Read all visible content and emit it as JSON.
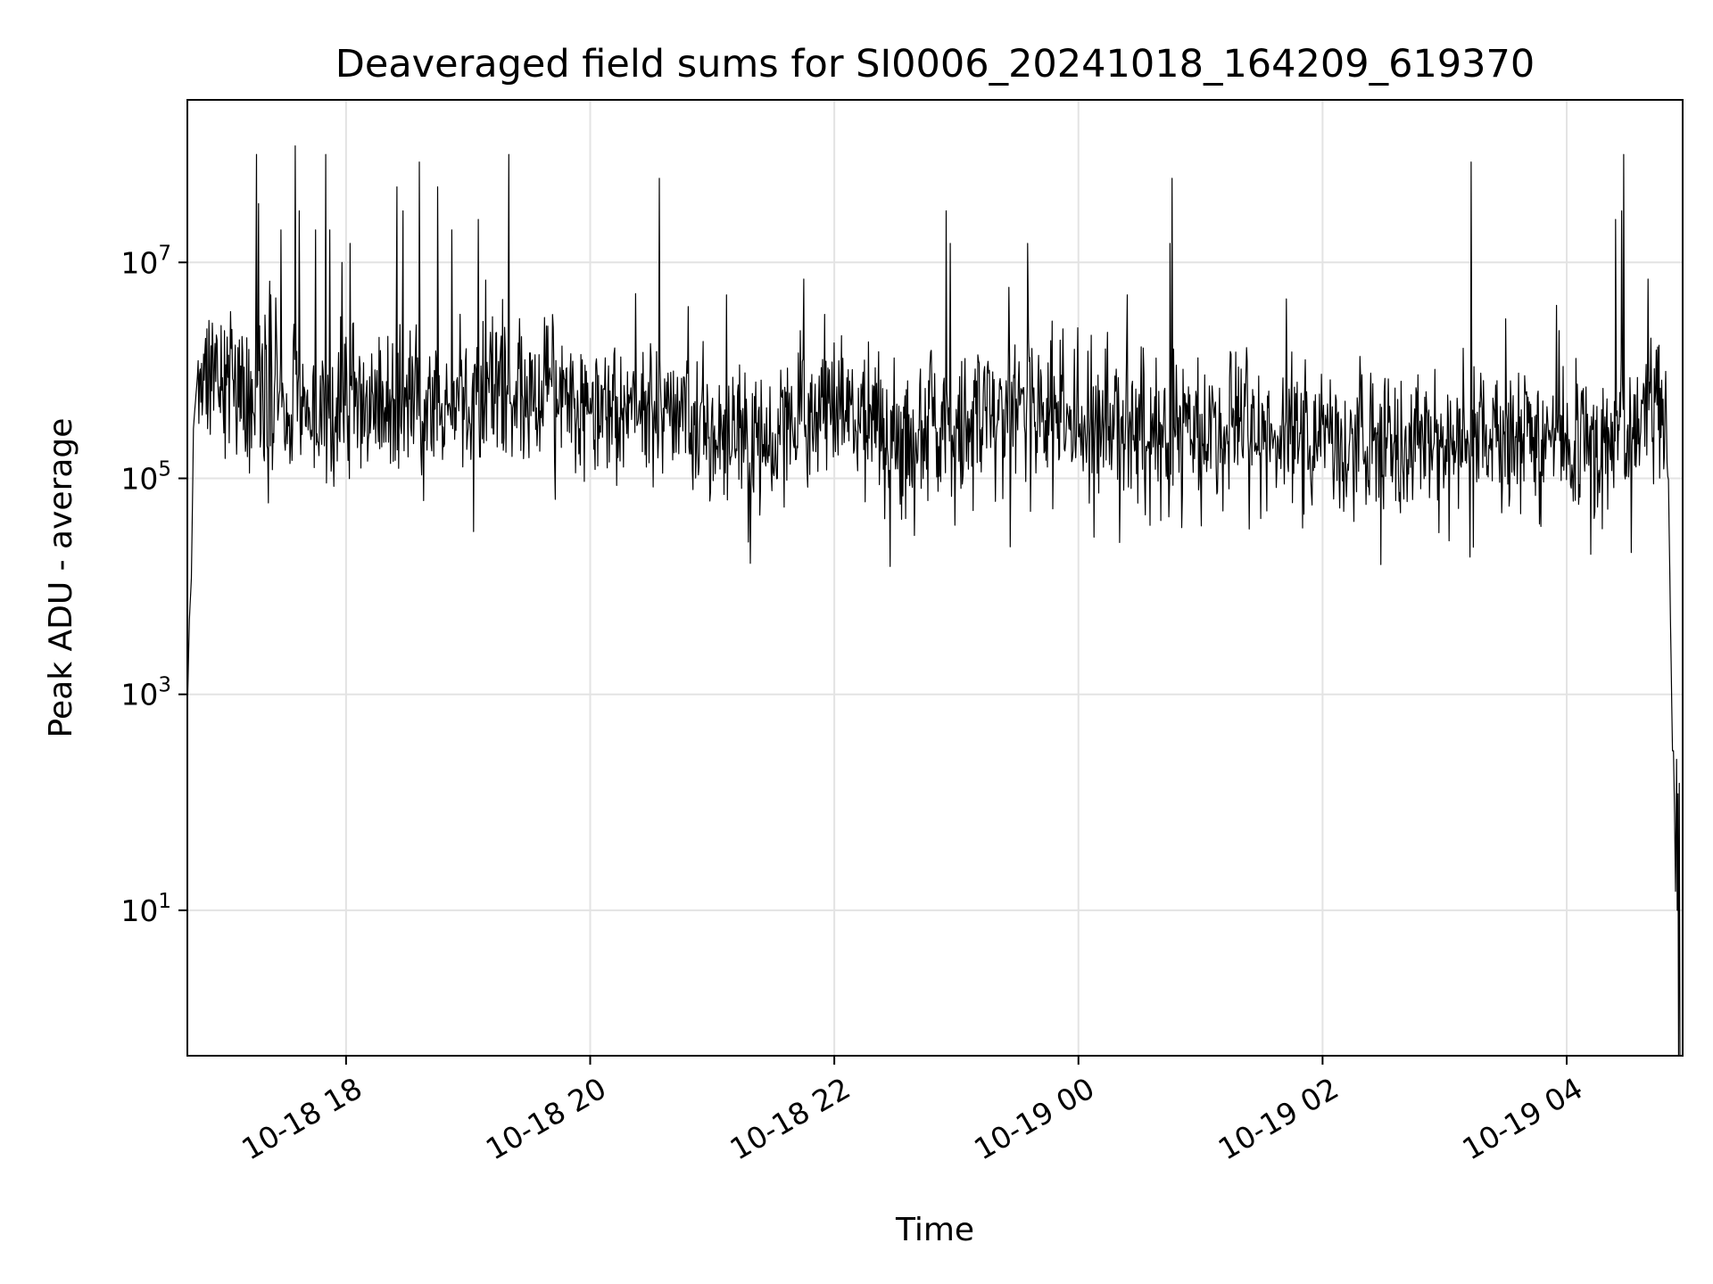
{
  "chart_data": {
    "type": "line",
    "title": "Deaveraged field sums for SI0006_20241018_164209_619370",
    "xlabel": "Time",
    "ylabel": "Peak ADU - average",
    "yscale": "log",
    "ylim": [
      0.45,
      320000000
    ],
    "xlim": [
      "2024-10-18 16:42",
      "2024-10-19 04:57"
    ],
    "grid": true,
    "x_ticks": [
      {
        "t": "2024-10-18 18:00",
        "label": "10-18 18"
      },
      {
        "t": "2024-10-18 20:00",
        "label": "10-18 20"
      },
      {
        "t": "2024-10-18 22:00",
        "label": "10-18 22"
      },
      {
        "t": "2024-10-19 00:00",
        "label": "10-19 00"
      },
      {
        "t": "2024-10-19 02:00",
        "label": "10-19 02"
      },
      {
        "t": "2024-10-19 04:00",
        "label": "10-19 04"
      }
    ],
    "y_ticks": [
      {
        "value": 10,
        "base": "10",
        "exp": "1"
      },
      {
        "value": 1000,
        "base": "10",
        "exp": "3"
      },
      {
        "value": 100000,
        "base": "10",
        "exp": "5"
      },
      {
        "value": 10000000,
        "base": "10",
        "exp": "7"
      }
    ],
    "series": [
      {
        "color": "#000000",
        "baseline": [
          {
            "t": "2024-10-18 16:42",
            "v": 700
          },
          {
            "t": "2024-10-18 16:43",
            "v": 5000
          },
          {
            "t": "2024-10-18 16:44",
            "v": 12000
          },
          {
            "t": "2024-10-18 16:45",
            "v": 300000
          },
          {
            "t": "2024-10-18 16:47",
            "v": 900000
          },
          {
            "t": "2024-10-18 16:55",
            "v": 1200000
          },
          {
            "t": "2024-10-18 17:10",
            "v": 600000
          },
          {
            "t": "2024-10-18 17:40",
            "v": 450000
          },
          {
            "t": "2024-10-18 18:30",
            "v": 450000
          },
          {
            "t": "2024-10-18 19:30",
            "v": 550000
          },
          {
            "t": "2024-10-18 20:30",
            "v": 450000
          },
          {
            "t": "2024-10-18 21:30",
            "v": 200000
          },
          {
            "t": "2024-10-18 22:00",
            "v": 500000
          },
          {
            "t": "2024-10-18 22:30",
            "v": 200000
          },
          {
            "t": "2024-10-18 23:30",
            "v": 450000
          },
          {
            "t": "2024-10-19 00:30",
            "v": 300000
          },
          {
            "t": "2024-10-19 01:30",
            "v": 300000
          },
          {
            "t": "2024-10-19 02:30",
            "v": 200000
          },
          {
            "t": "2024-10-19 03:30",
            "v": 250000
          },
          {
            "t": "2024-10-19 04:20",
            "v": 220000
          },
          {
            "t": "2024-10-19 04:40",
            "v": 500000
          },
          {
            "t": "2024-10-19 04:47",
            "v": 600000
          },
          {
            "t": "2024-10-19 04:50",
            "v": 100000
          },
          {
            "t": "2024-10-19 04:51",
            "v": 5000
          },
          {
            "t": "2024-10-19 04:52",
            "v": 300
          }
        ],
        "noise_amplitude_decades": 0.35,
        "spikes": [
          {
            "t": "2024-10-18 17:16",
            "v": 100000000
          },
          {
            "t": "2024-10-18 17:17",
            "v": 35000000
          },
          {
            "t": "2024-10-18 17:23",
            "v": 5000000
          },
          {
            "t": "2024-10-18 17:28",
            "v": 20000000
          },
          {
            "t": "2024-10-18 17:35",
            "v": 120000000
          },
          {
            "t": "2024-10-18 17:37",
            "v": 30000000
          },
          {
            "t": "2024-10-18 17:45",
            "v": 20000000
          },
          {
            "t": "2024-10-18 17:50",
            "v": 100000000
          },
          {
            "t": "2024-10-18 17:52",
            "v": 20000000
          },
          {
            "t": "2024-10-18 17:58",
            "v": 10000000
          },
          {
            "t": "2024-10-18 18:02",
            "v": 15000000
          },
          {
            "t": "2024-10-18 18:25",
            "v": 50000000
          },
          {
            "t": "2024-10-18 18:28",
            "v": 30000000
          },
          {
            "t": "2024-10-18 18:36",
            "v": 85000000
          },
          {
            "t": "2024-10-18 18:45",
            "v": 50000000
          },
          {
            "t": "2024-10-18 18:52",
            "v": 20000000
          },
          {
            "t": "2024-10-18 19:05",
            "v": 25000000
          },
          {
            "t": "2024-10-18 19:20",
            "v": 100000000
          },
          {
            "t": "2024-10-18 20:34",
            "v": 60000000
          },
          {
            "t": "2024-10-18 21:07",
            "v": 5000000
          },
          {
            "t": "2024-10-18 21:45",
            "v": 7000000
          },
          {
            "t": "2024-10-18 22:55",
            "v": 30000000
          },
          {
            "t": "2024-10-18 22:57",
            "v": 15000000
          },
          {
            "t": "2024-10-18 23:35",
            "v": 15000000
          },
          {
            "t": "2024-10-19 00:24",
            "v": 5000000
          },
          {
            "t": "2024-10-19 00:45",
            "v": 15000000
          },
          {
            "t": "2024-10-19 00:46",
            "v": 60000000
          },
          {
            "t": "2024-10-19 03:13",
            "v": 85000000
          },
          {
            "t": "2024-10-19 03:30",
            "v": 3000000
          },
          {
            "t": "2024-10-19 03:55",
            "v": 4000000
          },
          {
            "t": "2024-10-19 04:24",
            "v": 25000000
          },
          {
            "t": "2024-10-19 04:27",
            "v": 30000000
          },
          {
            "t": "2024-10-19 04:28",
            "v": 100000000
          },
          {
            "t": "2024-10-19 04:40",
            "v": 7000000
          }
        ],
        "tail": [
          {
            "t": "2024-10-19 04:52:30",
            "v": 300
          },
          {
            "t": "2024-10-19 04:53:00",
            "v": 80
          },
          {
            "t": "2024-10-19 04:53:30",
            "v": 15
          },
          {
            "t": "2024-10-19 04:54:00",
            "v": 250
          },
          {
            "t": "2024-10-19 04:54:20",
            "v": 10
          },
          {
            "t": "2024-10-19 04:54:40",
            "v": 120
          },
          {
            "t": "2024-10-19 04:55:00",
            "v": 0.45
          },
          {
            "t": "2024-10-19 04:55:20",
            "v": 150
          },
          {
            "t": "2024-10-19 04:55:40",
            "v": 0.45
          }
        ]
      }
    ]
  }
}
